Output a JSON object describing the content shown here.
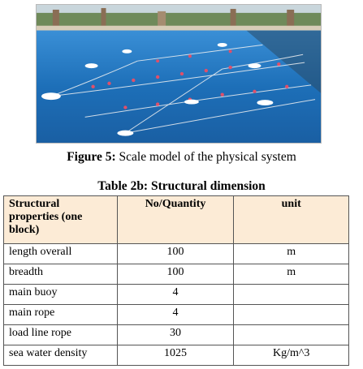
{
  "figure": {
    "label": "Figure 5:",
    "caption": " Scale model of the physical system"
  },
  "table": {
    "title": "Table 2b: Structural dimension",
    "headers": [
      "Structural properties (one block)",
      "No/Quantity",
      "unit"
    ],
    "rows": [
      [
        "length overall",
        "100",
        "m"
      ],
      [
        "breadth",
        "100",
        "m"
      ],
      [
        "main buoy",
        "4",
        ""
      ],
      [
        "main rope",
        "4",
        ""
      ],
      [
        "load line rope",
        "30",
        ""
      ],
      [
        "sea water density",
        "1025",
        "Kg/m^3"
      ]
    ]
  },
  "colors": {
    "header_bg": "#fcebd6",
    "water": "#1d6fb8",
    "buoy": "#ffffff",
    "float_marker": "#e0506a"
  }
}
